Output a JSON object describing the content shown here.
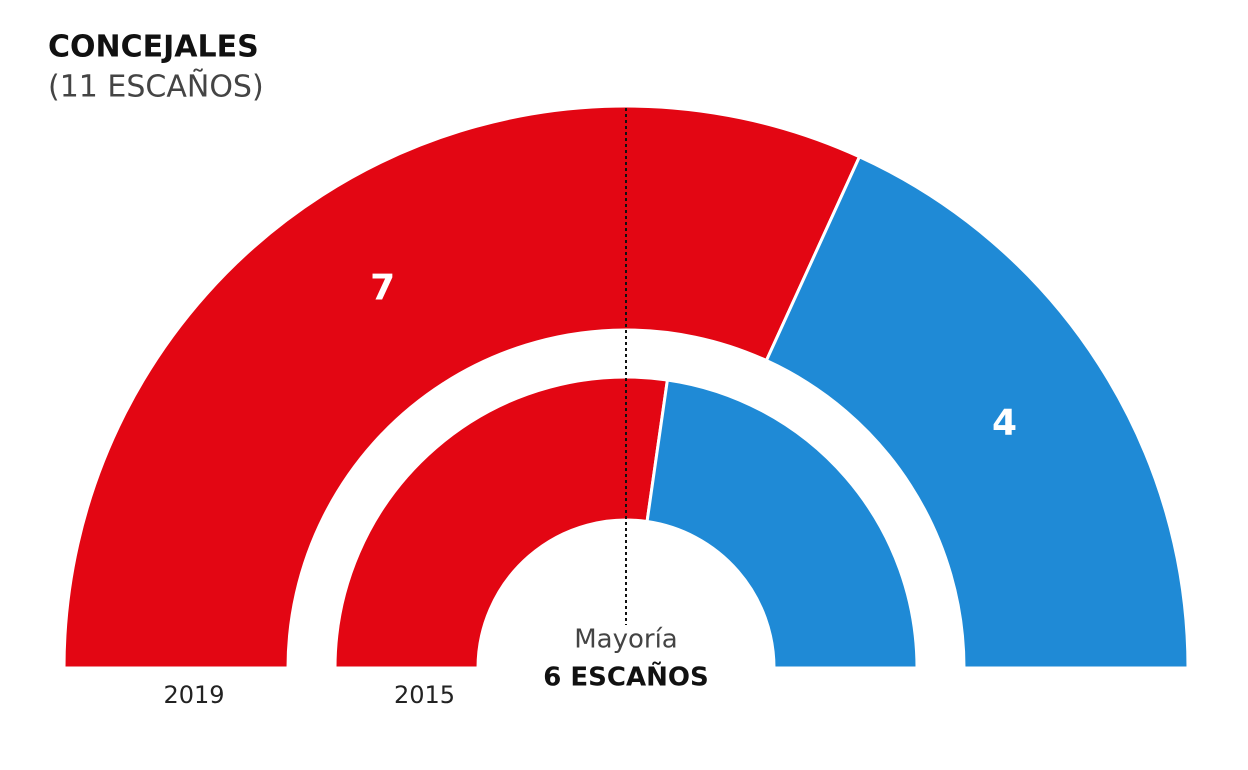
{
  "chart_data": {
    "type": "parliament",
    "title": "CONCEJALES",
    "subtitle": "(11 ESCAÑOS)",
    "colors": [
      "#e30613",
      "#1f8ad6"
    ],
    "rings": [
      {
        "label": "2019",
        "values": [
          7,
          4
        ],
        "value_labels": [
          "7",
          "4"
        ]
      },
      {
        "label": "2015",
        "values": [
          6,
          5
        ]
      }
    ],
    "majority_label": "Mayoría",
    "majority_value_label": "6 ESCAÑOS"
  }
}
